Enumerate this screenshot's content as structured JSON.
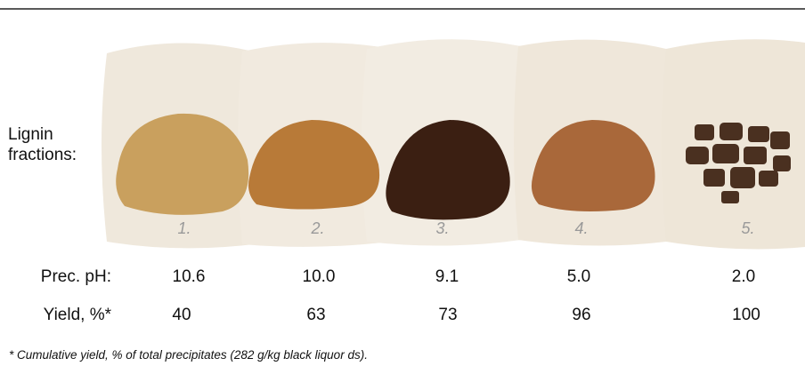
{
  "side_label": "Lignin fractions:",
  "row_labels": {
    "ph": "Prec. pH:",
    "yield": "Yield, %*"
  },
  "fractions": [
    {
      "number": "1.",
      "ph": "10.6",
      "yield": "40"
    },
    {
      "number": "2.",
      "ph": "10.0",
      "yield": "63"
    },
    {
      "number": "3.",
      "ph": "9.1",
      "yield": "73"
    },
    {
      "number": "4.",
      "ph": "5.0",
      "yield": "96"
    },
    {
      "number": "5.",
      "ph": "2.0",
      "yield": "100"
    }
  ],
  "footnote": "* Cumulative yield, % of total precipitates (282 g/kg black liquor ds)."
}
